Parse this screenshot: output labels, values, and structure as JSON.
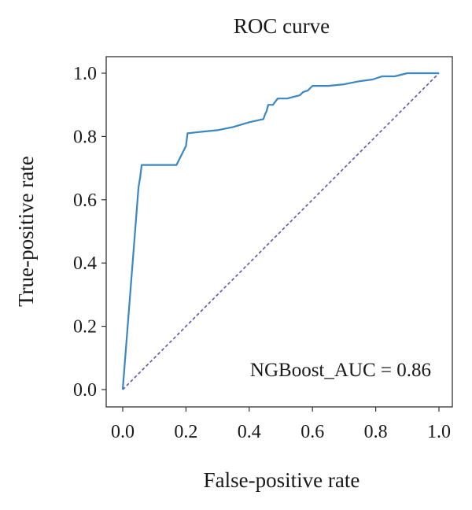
{
  "chart_data": {
    "type": "line",
    "title": "ROC curve",
    "xlabel": "False-positive rate",
    "ylabel": "True-positive rate",
    "xlim": [
      0.0,
      1.0
    ],
    "ylim": [
      0.0,
      1.0
    ],
    "xticks": [
      "0.0",
      "0.2",
      "0.4",
      "0.6",
      "0.8",
      "1.0"
    ],
    "yticks": [
      "0.0",
      "0.2",
      "0.4",
      "0.6",
      "0.8",
      "1.0"
    ],
    "grid": false,
    "annotation": "NGBoost_AUC = 0.86",
    "colors": {
      "roc": "#3a87c4",
      "diagonal": "#5b55b5",
      "frame": "#333333"
    },
    "series": [
      {
        "x": [
          0.0,
          0.05,
          0.055,
          0.06,
          0.17,
          0.18,
          0.19,
          0.2,
          0.205,
          0.25,
          0.3,
          0.35,
          0.4,
          0.445,
          0.45,
          0.455,
          0.46,
          0.475,
          0.49,
          0.52,
          0.54,
          0.56,
          0.57,
          0.585,
          0.6,
          0.65,
          0.7,
          0.75,
          0.79,
          0.82,
          0.86,
          0.9,
          0.95,
          1.0
        ],
        "y": [
          0.0,
          0.64,
          0.67,
          0.71,
          0.71,
          0.73,
          0.75,
          0.77,
          0.81,
          0.815,
          0.82,
          0.83,
          0.845,
          0.855,
          0.87,
          0.88,
          0.9,
          0.9,
          0.92,
          0.92,
          0.925,
          0.93,
          0.94,
          0.945,
          0.96,
          0.96,
          0.965,
          0.975,
          0.98,
          0.99,
          0.99,
          1.0,
          1.0,
          1.0
        ]
      },
      {
        "x": [
          0.0,
          1.0
        ],
        "y": [
          0.0,
          1.0
        ]
      }
    ]
  }
}
